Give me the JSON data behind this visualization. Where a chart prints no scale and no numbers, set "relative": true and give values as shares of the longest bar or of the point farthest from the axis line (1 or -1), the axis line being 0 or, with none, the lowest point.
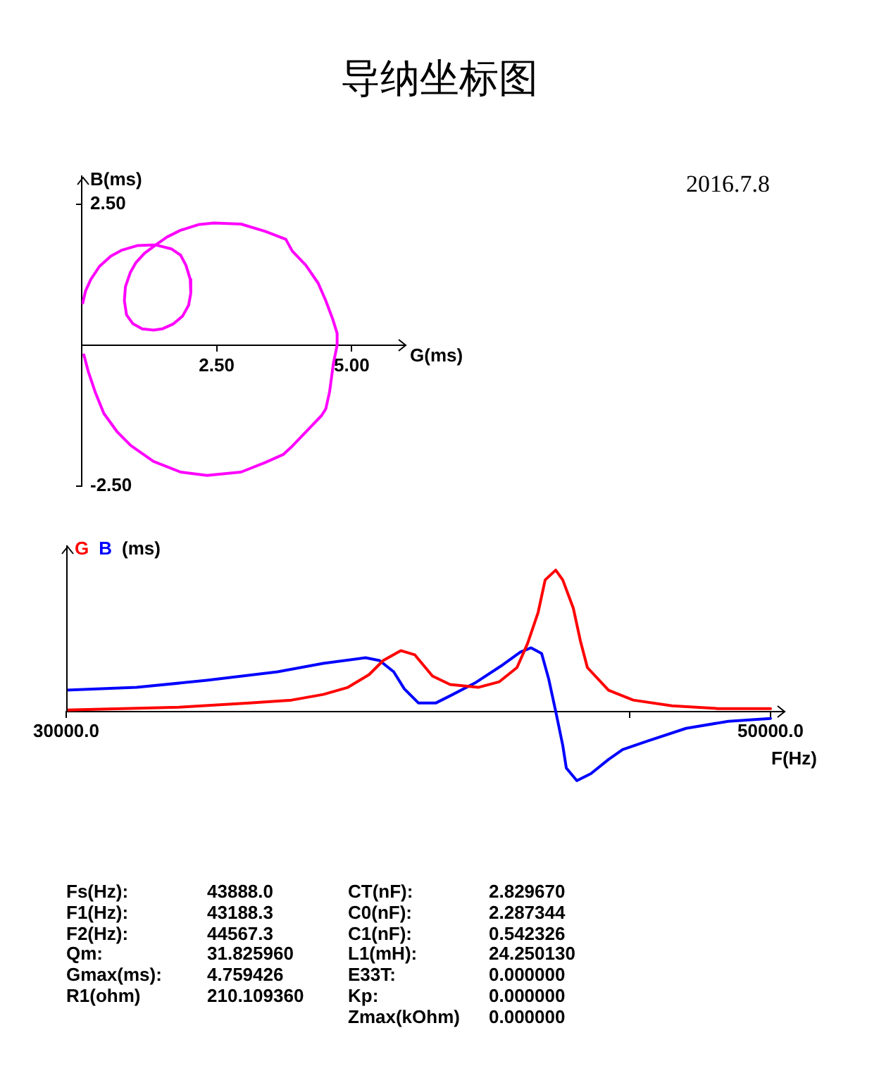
{
  "chart_data": [
    {
      "type": "line",
      "title": "导纳坐标图",
      "annotations": [
        "2016.7.8"
      ],
      "xlabel": "G(ms)",
      "ylabel": "B(ms)",
      "marker": "none",
      "xlim": [
        0,
        6
      ],
      "ylim": [
        -2.5,
        3
      ],
      "xticks": [
        {
          "value": 2.5,
          "label": "2.50"
        },
        {
          "value": 5,
          "label": "5.00"
        }
      ],
      "yticks": [
        {
          "value": -2.5,
          "label": "-2.50"
        },
        {
          "value": 2.5,
          "label": "2.50"
        }
      ],
      "x": [
        0.02,
        0.07,
        0.17,
        0.33,
        0.54,
        0.75,
        1.04,
        1.37,
        1.66,
        1.83,
        1.93,
        2.01,
        2.02,
        1.98,
        1.87,
        1.7,
        1.49,
        1.33,
        1.12,
        0.95,
        0.83,
        0.79,
        0.81,
        0.9,
        1,
        1.16,
        1.37,
        1.58,
        1.83,
        2.16,
        2.45,
        2.95,
        3.4,
        3.78,
        3.9,
        4.15,
        4.38,
        4.52,
        4.65,
        4.73,
        4.73,
        4.66,
        4.59,
        4.52,
        4.44,
        4.15,
        3.9,
        3.73,
        3.4,
        2.95,
        2.32,
        1.83,
        1.33,
        0.91,
        0.66,
        0.41,
        0.25,
        0.12,
        0.04
      ],
      "series": [
        {
          "color": "#ff00ff",
          "values": [
            0.75,
            0.96,
            1.17,
            1.4,
            1.58,
            1.69,
            1.77,
            1.78,
            1.71,
            1.6,
            1.42,
            1.17,
            0.92,
            0.71,
            0.52,
            0.38,
            0.29,
            0.27,
            0.29,
            0.38,
            0.54,
            0.79,
            1.04,
            1.29,
            1.46,
            1.63,
            1.78,
            1.92,
            2.04,
            2.14,
            2.17,
            2.15,
            2.02,
            1.88,
            1.67,
            1.42,
            1.1,
            0.79,
            0.46,
            0.21,
            0,
            -0.33,
            -0.83,
            -1.13,
            -1.25,
            -1.54,
            -1.79,
            -1.94,
            -2.08,
            -2.25,
            -2.31,
            -2.25,
            -2.06,
            -1.78,
            -1.54,
            -1.21,
            -0.83,
            -0.46,
            -0.17
          ]
        }
      ]
    },
    {
      "type": "line",
      "relative": true,
      "xlabel": "F(Hz)",
      "ylabel": "(ms)",
      "legend": "top left",
      "marker": "none",
      "xlim": [
        30000,
        50400
      ],
      "xticks": [
        {
          "value": 30000,
          "label": "30000.0"
        },
        {
          "value": 46000,
          "label": null
        },
        {
          "value": 50000,
          "label": "50000.0"
        }
      ],
      "series": [
        {
          "name": "G",
          "color": "#ff0000",
          "x": [
            30000,
            33200,
            35200,
            36400,
            37300,
            38000,
            38600,
            39000,
            39500,
            39900,
            40400,
            40900,
            41700,
            42300,
            42800,
            43100,
            43400,
            43600,
            43900,
            44100,
            44400,
            44600,
            44800,
            45400,
            46100,
            47200,
            48500,
            50000
          ],
          "values": [
            0.01,
            0.03,
            0.06,
            0.08,
            0.12,
            0.17,
            0.26,
            0.36,
            0.43,
            0.4,
            0.25,
            0.19,
            0.17,
            0.21,
            0.31,
            0.48,
            0.7,
            0.93,
            1,
            0.93,
            0.73,
            0.5,
            0.31,
            0.15,
            0.08,
            0.04,
            0.02,
            0.02
          ]
        },
        {
          "name": "B",
          "color": "#0000ff",
          "x": [
            30000,
            32000,
            34000,
            36000,
            37300,
            38500,
            38900,
            39300,
            39600,
            40000,
            40500,
            40900,
            41600,
            42400,
            42900,
            43200,
            43500,
            43700,
            43900,
            44100,
            44200,
            44500,
            44900,
            45400,
            45800,
            46500,
            47600,
            48800,
            50000
          ],
          "values": [
            0.15,
            0.17,
            0.22,
            0.28,
            0.34,
            0.38,
            0.36,
            0.28,
            0.16,
            0.06,
            0.06,
            0.11,
            0.2,
            0.33,
            0.42,
            0.45,
            0.41,
            0.23,
            0,
            -0.24,
            -0.4,
            -0.49,
            -0.44,
            -0.34,
            -0.27,
            -0.21,
            -0.12,
            -0.07,
            -0.05
          ]
        }
      ]
    },
    {
      "type": "other",
      "annotations": [
        "Fs(Hz):",
        "43888.0",
        "CT(nF):",
        "2.829670",
        "F1(Hz):",
        "43188.3",
        "C0(nF):",
        "2.287344",
        "F2(Hz):",
        "44567.3",
        "C1(nF):",
        "0.542326",
        "Qm:",
        "31.825960",
        "L1(mH):",
        "24.250130",
        "Gmax(ms):",
        "4.759426",
        "E33T:",
        "0.000000",
        "R1(ohm)",
        "210.109360",
        "Kp:",
        "0.000000",
        "Zmax(kOhm)",
        "0.000000"
      ]
    }
  ]
}
